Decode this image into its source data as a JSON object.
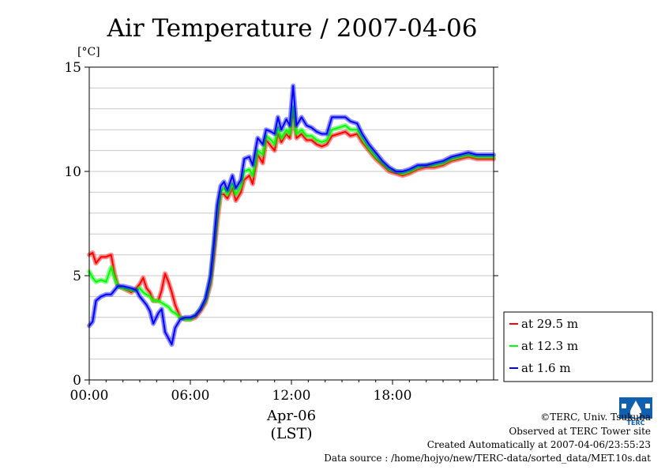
{
  "chart_data": {
    "type": "line",
    "title": "Air Temperature / 2007-04-06",
    "unit_label": "[°C]",
    "xlabel": [
      "Apr-06",
      "(LST)"
    ],
    "x_unit": "hours LST",
    "xlim": [
      0,
      24
    ],
    "ylim": [
      0,
      15
    ],
    "y_ticks": [
      "0",
      "5",
      "10",
      "15"
    ],
    "x_ticks": [
      {
        "at": 0,
        "label": "00:00"
      },
      {
        "at": 6,
        "label": "06:00"
      },
      {
        "at": 12,
        "label": "12:00"
      },
      {
        "at": 18,
        "label": "18:00"
      }
    ],
    "grid": true,
    "legend_position": "right",
    "series": [
      {
        "name": "at 29.5 m",
        "color": "#ff0000",
        "values": [
          [
            0,
            6.0
          ],
          [
            0.2,
            6.1
          ],
          [
            0.4,
            5.6
          ],
          [
            0.7,
            5.9
          ],
          [
            1.0,
            5.9
          ],
          [
            1.3,
            6.0
          ],
          [
            1.5,
            5.1
          ],
          [
            1.7,
            4.5
          ],
          [
            2.0,
            4.4
          ],
          [
            2.5,
            4.2
          ],
          [
            2.8,
            4.4
          ],
          [
            3.0,
            4.6
          ],
          [
            3.2,
            4.9
          ],
          [
            3.4,
            4.4
          ],
          [
            3.6,
            4.2
          ],
          [
            3.8,
            3.8
          ],
          [
            4.1,
            3.8
          ],
          [
            4.3,
            4.3
          ],
          [
            4.5,
            5.1
          ],
          [
            4.7,
            4.7
          ],
          [
            4.9,
            4.2
          ],
          [
            5.1,
            3.6
          ],
          [
            5.4,
            3.0
          ],
          [
            5.7,
            2.9
          ],
          [
            6.0,
            2.9
          ],
          [
            6.3,
            3.0
          ],
          [
            6.6,
            3.3
          ],
          [
            6.9,
            3.7
          ],
          [
            7.2,
            4.6
          ],
          [
            7.4,
            6.0
          ],
          [
            7.6,
            7.6
          ],
          [
            7.8,
            8.9
          ],
          [
            8.0,
            8.9
          ],
          [
            8.2,
            8.7
          ],
          [
            8.5,
            9.2
          ],
          [
            8.7,
            8.6
          ],
          [
            9.0,
            9.0
          ],
          [
            9.2,
            9.6
          ],
          [
            9.5,
            9.8
          ],
          [
            9.7,
            9.4
          ],
          [
            10.0,
            10.8
          ],
          [
            10.3,
            10.4
          ],
          [
            10.5,
            11.5
          ],
          [
            10.8,
            11.2
          ],
          [
            11.0,
            11.0
          ],
          [
            11.2,
            11.8
          ],
          [
            11.4,
            11.4
          ],
          [
            11.7,
            11.8
          ],
          [
            11.9,
            11.6
          ],
          [
            12.1,
            12.9
          ],
          [
            12.3,
            11.6
          ],
          [
            12.6,
            11.8
          ],
          [
            12.9,
            11.5
          ],
          [
            13.2,
            11.5
          ],
          [
            13.5,
            11.3
          ],
          [
            13.8,
            11.2
          ],
          [
            14.1,
            11.3
          ],
          [
            14.4,
            11.7
          ],
          [
            14.8,
            11.8
          ],
          [
            15.2,
            11.9
          ],
          [
            15.5,
            11.7
          ],
          [
            15.9,
            11.8
          ],
          [
            16.2,
            11.4
          ],
          [
            16.6,
            11.0
          ],
          [
            17.0,
            10.6
          ],
          [
            17.4,
            10.3
          ],
          [
            17.8,
            10.0
          ],
          [
            18.2,
            9.9
          ],
          [
            18.6,
            9.8
          ],
          [
            19.0,
            9.9
          ],
          [
            19.5,
            10.1
          ],
          [
            20.0,
            10.2
          ],
          [
            20.5,
            10.2
          ],
          [
            21.0,
            10.3
          ],
          [
            21.5,
            10.5
          ],
          [
            22.0,
            10.6
          ],
          [
            22.5,
            10.7
          ],
          [
            23.0,
            10.6
          ],
          [
            23.5,
            10.6
          ],
          [
            24.0,
            10.6
          ]
        ]
      },
      {
        "name": "at 12.3 m",
        "color": "#00ff00",
        "values": [
          [
            0,
            5.2
          ],
          [
            0.2,
            4.9
          ],
          [
            0.4,
            4.7
          ],
          [
            0.7,
            4.8
          ],
          [
            1.0,
            4.7
          ],
          [
            1.3,
            5.4
          ],
          [
            1.5,
            4.9
          ],
          [
            1.7,
            4.5
          ],
          [
            2.0,
            4.4
          ],
          [
            2.5,
            4.3
          ],
          [
            2.8,
            4.3
          ],
          [
            3.0,
            4.4
          ],
          [
            3.2,
            4.2
          ],
          [
            3.4,
            4.1
          ],
          [
            3.6,
            4.0
          ],
          [
            3.8,
            3.8
          ],
          [
            4.1,
            3.8
          ],
          [
            4.3,
            3.7
          ],
          [
            4.5,
            3.6
          ],
          [
            4.7,
            3.5
          ],
          [
            4.9,
            3.3
          ],
          [
            5.1,
            3.2
          ],
          [
            5.4,
            3.0
          ],
          [
            5.7,
            2.9
          ],
          [
            6.0,
            2.9
          ],
          [
            6.3,
            3.1
          ],
          [
            6.6,
            3.4
          ],
          [
            6.9,
            3.8
          ],
          [
            7.2,
            4.8
          ],
          [
            7.4,
            6.4
          ],
          [
            7.6,
            8.0
          ],
          [
            7.8,
            9.0
          ],
          [
            8.0,
            9.2
          ],
          [
            8.2,
            8.9
          ],
          [
            8.5,
            9.4
          ],
          [
            8.7,
            8.9
          ],
          [
            9.0,
            9.3
          ],
          [
            9.2,
            10.0
          ],
          [
            9.5,
            10.1
          ],
          [
            9.7,
            9.8
          ],
          [
            10.0,
            11.0
          ],
          [
            10.3,
            10.8
          ],
          [
            10.5,
            11.7
          ],
          [
            10.8,
            11.5
          ],
          [
            11.0,
            11.3
          ],
          [
            11.2,
            12.1
          ],
          [
            11.4,
            11.6
          ],
          [
            11.7,
            12.0
          ],
          [
            11.9,
            11.8
          ],
          [
            12.1,
            13.1
          ],
          [
            12.3,
            11.8
          ],
          [
            12.6,
            12.0
          ],
          [
            12.9,
            11.7
          ],
          [
            13.2,
            11.7
          ],
          [
            13.5,
            11.5
          ],
          [
            13.8,
            11.4
          ],
          [
            14.1,
            11.5
          ],
          [
            14.4,
            12.0
          ],
          [
            14.8,
            12.1
          ],
          [
            15.2,
            12.2
          ],
          [
            15.5,
            12.0
          ],
          [
            15.9,
            12.0
          ],
          [
            16.2,
            11.6
          ],
          [
            16.6,
            11.1
          ],
          [
            17.0,
            10.7
          ],
          [
            17.4,
            10.4
          ],
          [
            17.8,
            10.1
          ],
          [
            18.2,
            10.0
          ],
          [
            18.6,
            9.9
          ],
          [
            19.0,
            10.0
          ],
          [
            19.5,
            10.2
          ],
          [
            20.0,
            10.3
          ],
          [
            20.5,
            10.3
          ],
          [
            21.0,
            10.4
          ],
          [
            21.5,
            10.6
          ],
          [
            22.0,
            10.7
          ],
          [
            22.5,
            10.8
          ],
          [
            23.0,
            10.7
          ],
          [
            23.5,
            10.7
          ],
          [
            24.0,
            10.7
          ]
        ]
      },
      {
        "name": "at 1.6 m",
        "color": "#0000ff",
        "values": [
          [
            0,
            2.6
          ],
          [
            0.2,
            2.8
          ],
          [
            0.4,
            3.8
          ],
          [
            0.7,
            4.0
          ],
          [
            1.0,
            4.1
          ],
          [
            1.3,
            4.1
          ],
          [
            1.5,
            4.3
          ],
          [
            1.7,
            4.5
          ],
          [
            2.0,
            4.5
          ],
          [
            2.5,
            4.4
          ],
          [
            2.8,
            4.3
          ],
          [
            3.0,
            4.0
          ],
          [
            3.2,
            3.8
          ],
          [
            3.4,
            3.6
          ],
          [
            3.6,
            3.3
          ],
          [
            3.8,
            2.7
          ],
          [
            4.1,
            3.2
          ],
          [
            4.3,
            3.4
          ],
          [
            4.5,
            2.3
          ],
          [
            4.7,
            2.0
          ],
          [
            4.9,
            1.7
          ],
          [
            5.1,
            2.5
          ],
          [
            5.4,
            2.9
          ],
          [
            5.7,
            3.0
          ],
          [
            6.0,
            3.0
          ],
          [
            6.3,
            3.1
          ],
          [
            6.6,
            3.4
          ],
          [
            6.9,
            3.9
          ],
          [
            7.2,
            5.0
          ],
          [
            7.4,
            6.6
          ],
          [
            7.6,
            8.4
          ],
          [
            7.8,
            9.3
          ],
          [
            8.0,
            9.5
          ],
          [
            8.2,
            9.1
          ],
          [
            8.5,
            9.8
          ],
          [
            8.7,
            9.2
          ],
          [
            9.0,
            9.6
          ],
          [
            9.2,
            10.6
          ],
          [
            9.5,
            10.7
          ],
          [
            9.7,
            10.3
          ],
          [
            10.0,
            11.6
          ],
          [
            10.3,
            11.3
          ],
          [
            10.5,
            12.0
          ],
          [
            10.8,
            11.9
          ],
          [
            11.0,
            11.8
          ],
          [
            11.2,
            12.6
          ],
          [
            11.4,
            12.0
          ],
          [
            11.7,
            12.5
          ],
          [
            11.9,
            12.2
          ],
          [
            12.1,
            14.1
          ],
          [
            12.3,
            12.2
          ],
          [
            12.6,
            12.6
          ],
          [
            12.9,
            12.2
          ],
          [
            13.2,
            12.1
          ],
          [
            13.5,
            11.9
          ],
          [
            13.8,
            11.8
          ],
          [
            14.1,
            11.8
          ],
          [
            14.4,
            12.6
          ],
          [
            14.8,
            12.6
          ],
          [
            15.2,
            12.6
          ],
          [
            15.5,
            12.4
          ],
          [
            15.9,
            12.3
          ],
          [
            16.2,
            11.8
          ],
          [
            16.6,
            11.3
          ],
          [
            17.0,
            10.9
          ],
          [
            17.4,
            10.5
          ],
          [
            17.8,
            10.2
          ],
          [
            18.2,
            10.0
          ],
          [
            18.6,
            10.0
          ],
          [
            19.0,
            10.1
          ],
          [
            19.5,
            10.3
          ],
          [
            20.0,
            10.3
          ],
          [
            20.5,
            10.4
          ],
          [
            21.0,
            10.5
          ],
          [
            21.5,
            10.7
          ],
          [
            22.0,
            10.8
          ],
          [
            22.5,
            10.9
          ],
          [
            23.0,
            10.8
          ],
          [
            23.5,
            10.8
          ],
          [
            24.0,
            10.8
          ]
        ]
      }
    ]
  },
  "footer": {
    "copyright": "©TERC, Univ. Tsukuba",
    "site": "Observed at TERC Tower site",
    "created": "Created Automatically at 2007-04-06/23:55:23",
    "source": "Data source : /home/hojyo/new/TERC-data/sorted_data/MET.10s.dat"
  },
  "logo": {
    "text": "TERC",
    "color": "#1060b0"
  }
}
